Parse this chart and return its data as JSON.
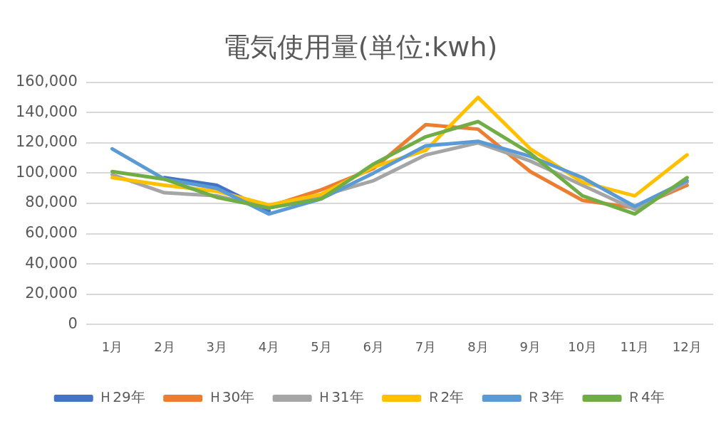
{
  "chart_data": {
    "type": "line",
    "title": "電気使用量(単位:kwh)",
    "categories": [
      "1月",
      "2月",
      "3月",
      "4月",
      "5月",
      "6月",
      "7月",
      "8月",
      "9月",
      "10月",
      "11月",
      "12月"
    ],
    "series": [
      {
        "name": "Ｈ29年",
        "color": "#4472c4",
        "values": [
          null,
          97000,
          92000,
          75000,
          null,
          null,
          null,
          null,
          null,
          null,
          null,
          null
        ]
      },
      {
        "name": "Ｈ30年",
        "color": "#ed7d31",
        "values": [
          null,
          null,
          null,
          78000,
          89000,
          103000,
          132000,
          129000,
          101000,
          82000,
          77000,
          92000
        ]
      },
      {
        "name": "Ｈ31年",
        "color": "#a5a5a5",
        "values": [
          99000,
          87000,
          85000,
          77000,
          85000,
          95000,
          112000,
          120000,
          108000,
          92000,
          76000,
          94000
        ]
      },
      {
        "name": "Ｒ2年",
        "color": "#ffc000",
        "values": [
          97000,
          92000,
          88000,
          79000,
          86000,
          104000,
          115000,
          150000,
          116000,
          94000,
          85000,
          112000
        ]
      },
      {
        "name": "Ｒ3年",
        "color": "#5b9bd5",
        "values": [
          116000,
          96000,
          90000,
          73000,
          83000,
          100000,
          118000,
          121000,
          111000,
          97000,
          78000,
          95000
        ]
      },
      {
        "name": "Ｒ4年",
        "color": "#70ad47",
        "values": [
          101000,
          96000,
          84000,
          77000,
          83000,
          106000,
          124000,
          134000,
          113000,
          85000,
          73000,
          97000
        ]
      }
    ],
    "ylim": [
      0,
      160000
    ],
    "yticks": [
      0,
      {
        "value": 20000,
        "label": "20,000"
      },
      {
        "value": 40000,
        "label": "40,000"
      },
      {
        "value": 60000,
        "label": "60,000"
      },
      {
        "value": 80000,
        "label": "80,000"
      },
      {
        "value": 100000,
        "label": "100,000"
      },
      {
        "value": 120000,
        "label": "120,000"
      },
      {
        "value": 140000,
        "label": "140,000"
      },
      {
        "value": 160000,
        "label": "160,000"
      }
    ],
    "grid": "y",
    "legend": "bottom",
    "marker": "none",
    "line_style": "solid"
  }
}
